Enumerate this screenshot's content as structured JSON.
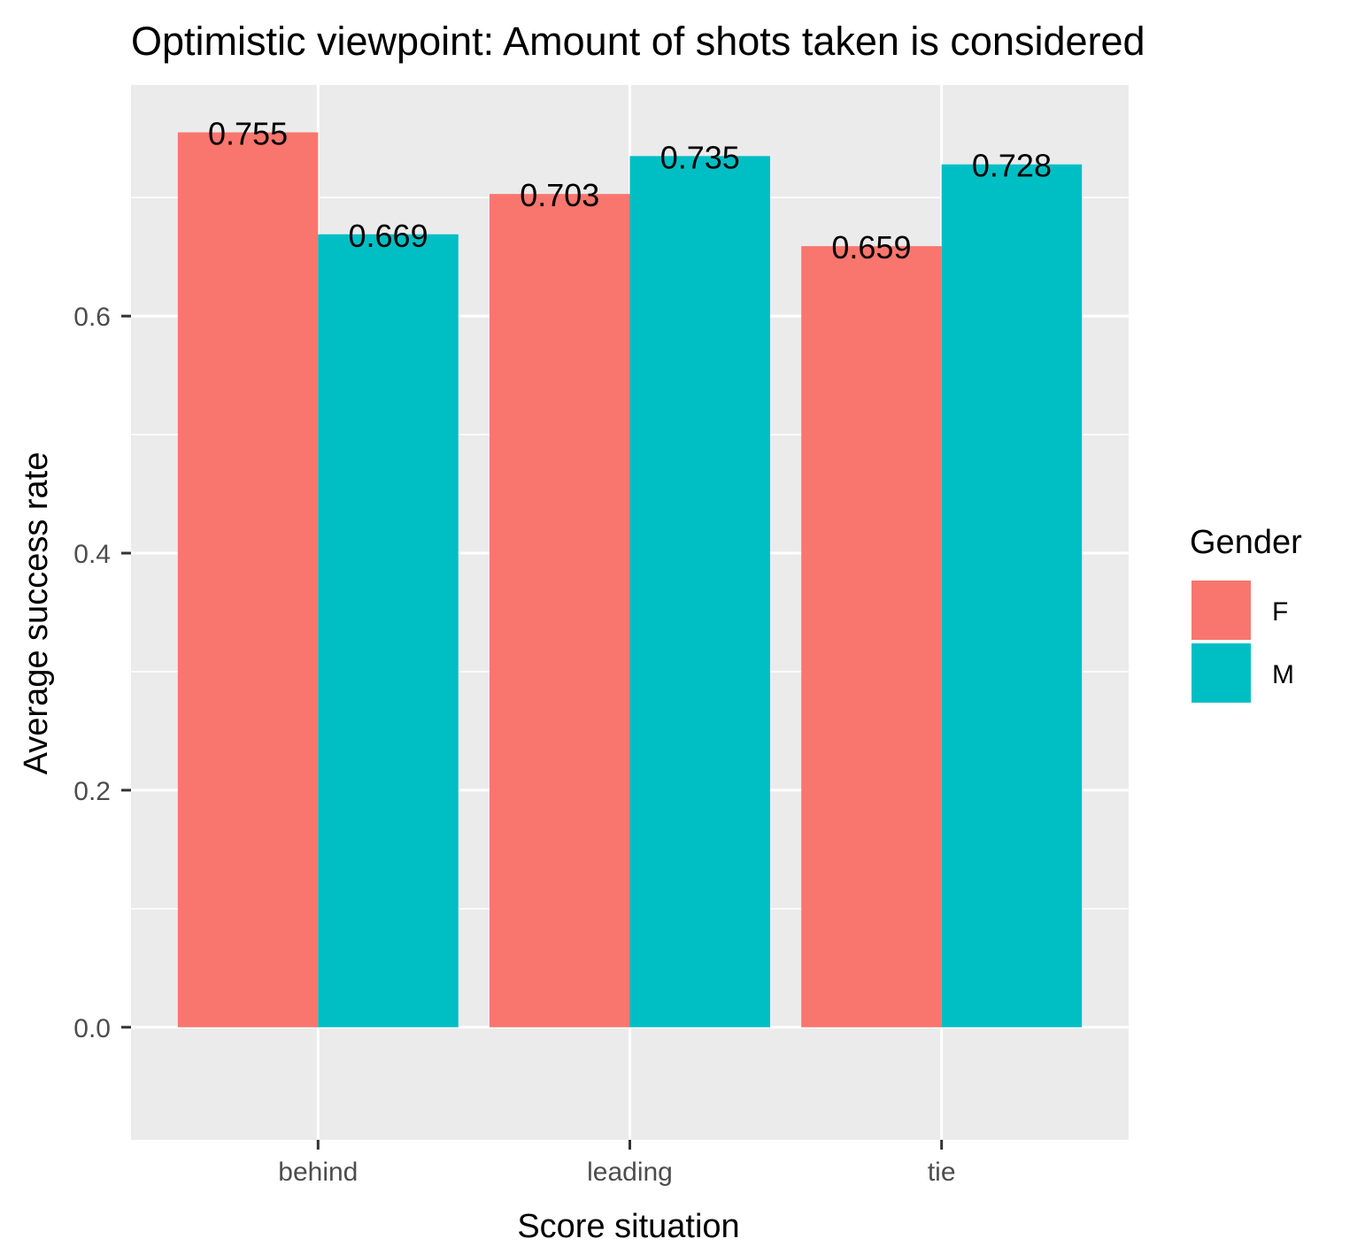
{
  "chart_data": {
    "type": "bar",
    "title": "Optimistic viewpoint: Amount of shots taken is considered",
    "xlabel": "Score situation",
    "ylabel": "Average success rate",
    "categories": [
      "behind",
      "leading",
      "tie"
    ],
    "series": [
      {
        "name": "F",
        "color": "#F8766D",
        "values": [
          0.755,
          0.703,
          0.659
        ],
        "labels": [
          "0.755",
          "0.703",
          "0.659"
        ]
      },
      {
        "name": "M",
        "color": "#00BFC4",
        "values": [
          0.669,
          0.735,
          0.728
        ],
        "labels": [
          "0.669",
          "0.735",
          "0.728"
        ]
      }
    ],
    "ylim": [
      -0.095,
      0.795
    ],
    "yticks": [
      0.0,
      0.2,
      0.4,
      0.6
    ],
    "ytick_labels": [
      "0.0",
      "0.2",
      "0.4",
      "0.6"
    ],
    "grid": true,
    "legend": {
      "title": "Gender",
      "placement": "right"
    },
    "colors": {
      "panel": "#EBEBEB",
      "grid": "#FFFFFF"
    }
  }
}
